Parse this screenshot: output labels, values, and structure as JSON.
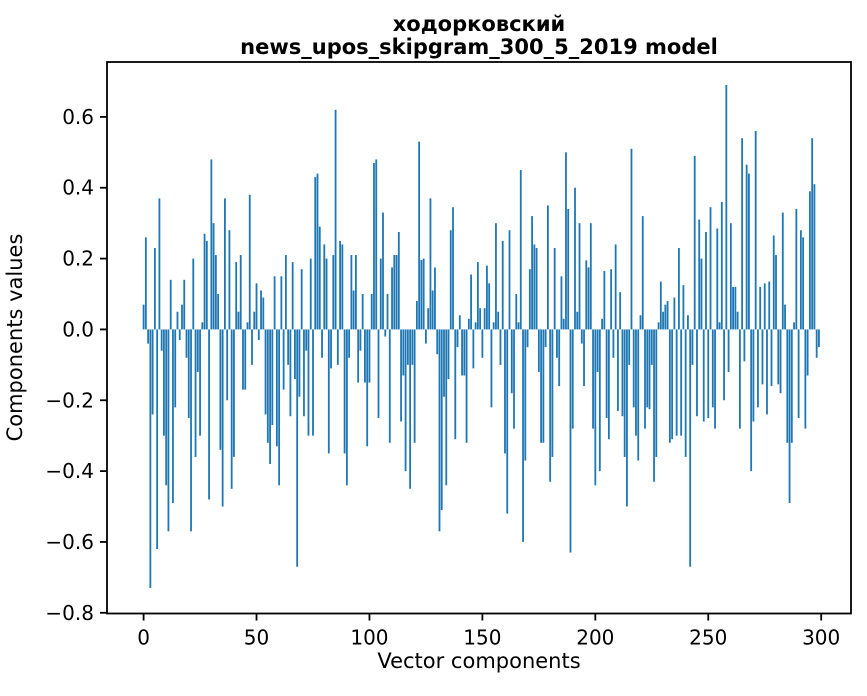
{
  "figure": {
    "title_line1": "ходорковский",
    "title_line2": "news_upos_skipgram_300_5_2019 model",
    "xlabel": "Vector components",
    "ylabel": "Components values"
  },
  "colors": {
    "bar": "#1f77b4",
    "axes": "#000000",
    "background": "#ffffff"
  },
  "chart_data": {
    "type": "bar",
    "title": "ходорковский\nnews_upos_skipgram_300_5_2019 model",
    "xlabel": "Vector components",
    "ylabel": "Components values",
    "legend": null,
    "grid": false,
    "bar_color": "#1f77b4",
    "n_components": 300,
    "x_start": 0,
    "xlim": [
      -16.2,
      313.2
    ],
    "ylim": [
      -0.802,
      0.755
    ],
    "x_ticks": [
      0,
      50,
      100,
      150,
      200,
      250,
      300
    ],
    "x_tick_labels": [
      "0",
      "50",
      "100",
      "150",
      "200",
      "250",
      "300"
    ],
    "y_ticks": [
      0.6,
      0.4,
      0.2,
      0.0,
      -0.2,
      -0.4,
      -0.6,
      -0.8
    ],
    "y_tick_labels": [
      "0.6",
      "0.4",
      "0.2",
      "0.0",
      "−0.2",
      "−0.4",
      "−0.6",
      "−0.8"
    ],
    "values": [
      0.07,
      0.26,
      -0.04,
      -0.73,
      -0.24,
      0.23,
      -0.62,
      0.37,
      -0.06,
      -0.3,
      -0.44,
      -0.57,
      0.14,
      -0.49,
      -0.22,
      0.05,
      -0.03,
      0.07,
      0.14,
      -0.08,
      -0.25,
      -0.57,
      0.2,
      -0.36,
      -0.12,
      -0.3,
      0.02,
      0.27,
      0.25,
      -0.48,
      0.48,
      0.3,
      0.21,
      0.1,
      -0.34,
      -0.5,
      0.37,
      -0.2,
      0.28,
      -0.45,
      -0.36,
      0.19,
      0.05,
      0.21,
      -0.17,
      -0.17,
      0.02,
      0.38,
      -0.1,
      0.05,
      0.13,
      -0.03,
      0.11,
      0.09,
      -0.24,
      -0.32,
      -0.38,
      -0.27,
      0.15,
      -0.33,
      -0.44,
      0.15,
      -0.17,
      0.21,
      -0.1,
      -0.245,
      0.19,
      -0.14,
      -0.67,
      -0.19,
      0.17,
      -0.245,
      -0.06,
      -0.3,
      0.2,
      -0.3,
      0.43,
      0.44,
      0.29,
      -0.08,
      0.24,
      0.2,
      -0.35,
      -0.11,
      0.21,
      0.62,
      -0.1,
      0.25,
      0.24,
      -0.35,
      -0.44,
      -0.08,
      0.21,
      0.11,
      0.21,
      -0.15,
      -0.06,
      0.1,
      -0.15,
      -0.33,
      -0.15,
      0.1,
      0.47,
      0.48,
      -0.25,
      0.2,
      0.33,
      -0.02,
      0.1,
      -0.32,
      0.175,
      0.21,
      0.21,
      0.275,
      -0.26,
      -0.13,
      -0.4,
      -0.1,
      -0.45,
      -0.1,
      -0.32,
      0.08,
      0.53,
      0.196,
      0.2,
      -0.04,
      0.06,
      0.37,
      0.11,
      0.175,
      -0.07,
      -0.57,
      -0.51,
      -0.19,
      -0.44,
      -0.14,
      0.28,
      0.345,
      -0.31,
      -0.05,
      0.04,
      -0.13,
      -0.13,
      -0.32,
      0.03,
      0.155,
      -0.11,
      0.02,
      0.19,
      0.06,
      -0.08,
      0.06,
      0.18,
      0.13,
      -0.22,
      0.02,
      0.3,
      0.05,
      -0.1,
      0.25,
      -0.35,
      -0.52,
      0.28,
      -0.18,
      -0.28,
      0.1,
      0.02,
      0.45,
      -0.6,
      -0.37,
      -0.05,
      0.17,
      0.32,
      0.24,
      0.23,
      -0.12,
      -0.32,
      -0.32,
      -0.05,
      0.35,
      -0.43,
      -0.36,
      0.23,
      -0.08,
      -0.16,
      0.15,
      0.03,
      0.5,
      0.34,
      -0.63,
      -0.28,
      0.4,
      0.05,
      0.3,
      -0.04,
      -0.16,
      0.195,
      0.175,
      0.3,
      -0.28,
      -0.44,
      -0.12,
      -0.4,
      0.03,
      0.165,
      -0.25,
      -0.31,
      0.17,
      -0.08,
      0.24,
      -0.23,
      0.105,
      -0.245,
      -0.36,
      -0.5,
      -0.1,
      0.51,
      -0.22,
      -0.3,
      -0.37,
      0.04,
      0.32,
      -0.28,
      -0.22,
      -0.225,
      -0.1,
      -0.43,
      -0.36,
      0.02,
      0.135,
      0.05,
      0.07,
      0.08,
      -0.32,
      -0.31,
      0.09,
      -0.3,
      0.23,
      -0.3,
      0.125,
      -0.36,
      0.04,
      -0.67,
      -0.1,
      0.49,
      -0.245,
      0.31,
      0.2,
      -0.26,
      0.275,
      -0.25,
      0.345,
      -0.22,
      -0.28,
      0.285,
      0.02,
      0.36,
      -0.2,
      0.69,
      -0.12,
      0.3,
      0.12,
      0.12,
      0.05,
      -0.28,
      0.54,
      -0.09,
      0.465,
      0.44,
      -0.4,
      -0.26,
      0.56,
      -0.22,
      0.12,
      -0.155,
      0.13,
      -0.24,
      0.135,
      -0.16,
      0.265,
      0.21,
      -0.155,
      -0.18,
      0.33,
      0.07,
      -0.32,
      -0.49,
      -0.32,
      0.02,
      0.34,
      -0.25,
      0.28,
      0.26,
      -0.28,
      -0.13,
      0.39,
      0.54,
      0.41,
      -0.08,
      -0.05
    ]
  }
}
